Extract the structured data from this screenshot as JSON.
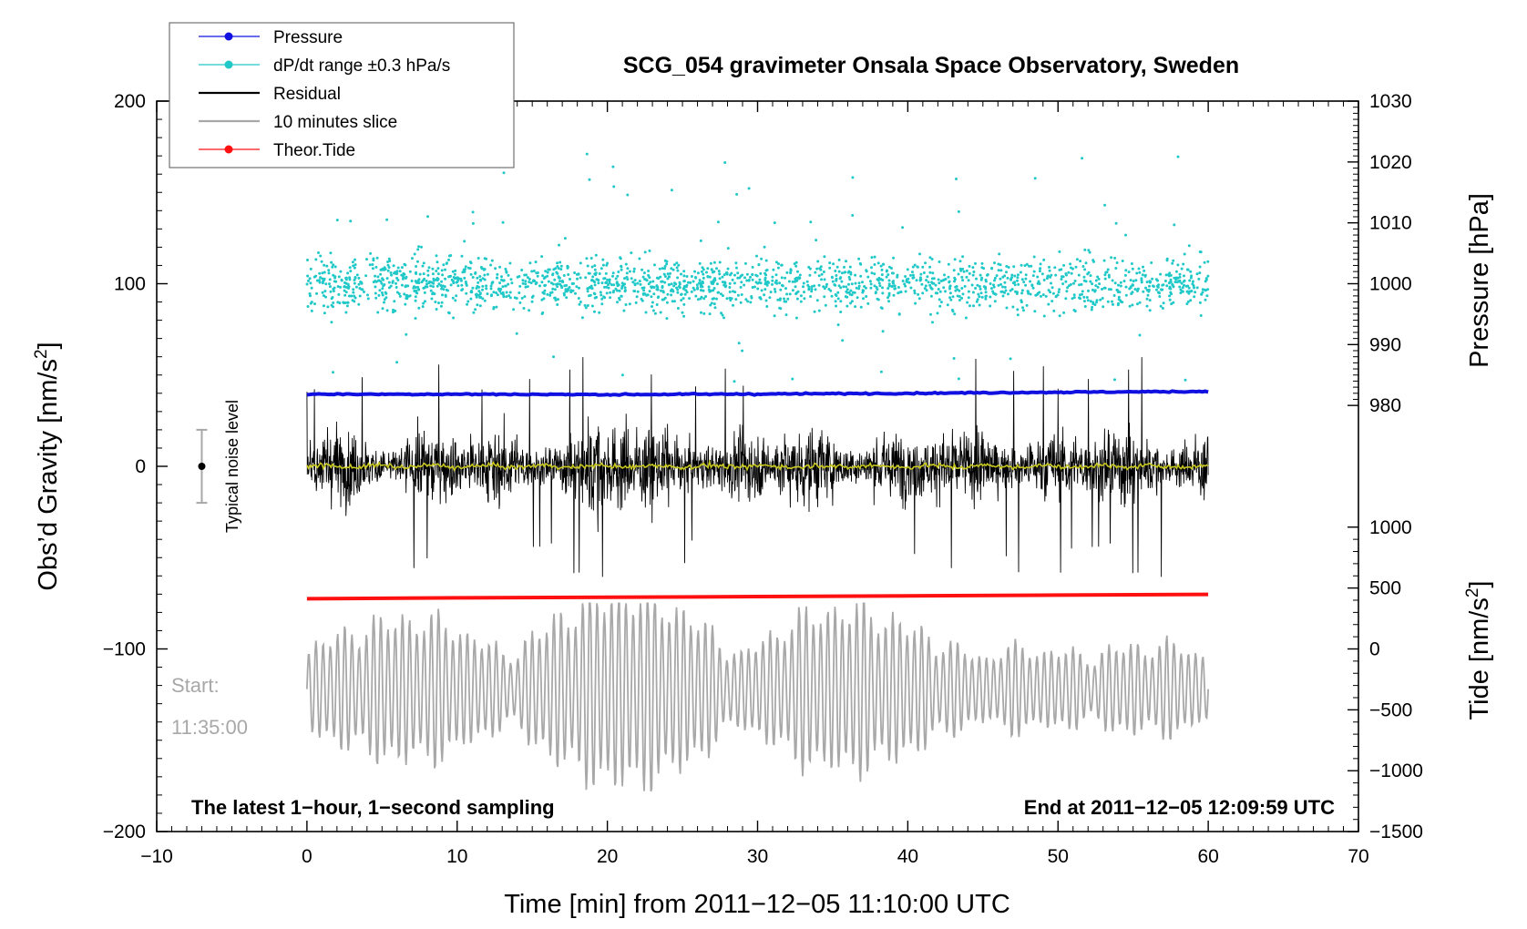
{
  "chart_data": {
    "type": "scatter",
    "title": "SCG_054 gravimeter Onsala Space Observatory, Sweden",
    "xlabel": "Time [min] from 2011−12−05 11:10:00 UTC",
    "ylabel": "Obs’d Gravity [nm/s",
    "ylabel_sup": "2",
    "ylabel_end": "]",
    "xlim": [
      -10,
      70
    ],
    "ylim": [
      -200,
      200
    ],
    "xticks": [
      -10,
      0,
      10,
      20,
      30,
      40,
      50,
      60,
      70
    ],
    "xtick_labels": [
      "−10",
      "0",
      "10",
      "20",
      "30",
      "40",
      "50",
      "60",
      "70"
    ],
    "yticks": [
      -200,
      -100,
      0,
      100,
      200
    ],
    "ytick_labels": [
      "−200",
      "−100",
      "0",
      "100",
      "200"
    ],
    "right_axis_pressure": {
      "label": "Pressure [hPa]",
      "ticks": [
        980,
        990,
        1000,
        1010,
        1020,
        1030
      ],
      "tick_labels": [
        "980",
        "990",
        "1000",
        "1010",
        "1020",
        "1030"
      ],
      "map_to_left": {
        "at_1000": 100,
        "per_hpa": 3.333
      }
    },
    "right_axis_tide": {
      "label": "Tide [nm/s",
      "label_sup": "2",
      "label_end": "]",
      "ticks": [
        -1500,
        -1000,
        -500,
        0,
        500,
        1000
      ],
      "tick_labels": [
        "−1500",
        "−1000",
        "−500",
        "0",
        "500",
        "1000"
      ],
      "map_to_left": {
        "at_0": -100,
        "per_unit": 0.0667
      }
    },
    "legend": [
      {
        "label": "Pressure",
        "color": "#1010e0",
        "marker": "dot"
      },
      {
        "label": "dP/dt range ±0.3 hPa/s",
        "color": "#20c8c8",
        "marker": "dot"
      },
      {
        "label": "Residual",
        "color": "#000000",
        "marker": "line"
      },
      {
        "label": "10 minutes slice",
        "color": "#a8a8a8",
        "marker": "line"
      },
      {
        "label": "Theor.Tide",
        "color": "#ff1010",
        "marker": "dot"
      }
    ],
    "series": [
      {
        "name": "Pressure",
        "color": "#1010e0",
        "x": [
          0,
          10,
          20,
          30,
          40,
          50,
          60
        ],
        "y": [
          39.5,
          39.5,
          39.3,
          39.6,
          40.0,
          40.6,
          41.0
        ]
      },
      {
        "name": "dP/dt range ±0.3 hPa/s",
        "color": "#20c8c8",
        "x_range": [
          0,
          60
        ],
        "center": 100,
        "spread": 12,
        "outlier_range": [
          45,
          175
        ]
      },
      {
        "name": "Residual",
        "color": "#000000",
        "x_range": [
          0,
          60
        ],
        "center": 0,
        "typical_amplitude": 22,
        "max": 65,
        "min": -68
      },
      {
        "name": "Residual 10-min smoothing",
        "color": "#c8c820",
        "x_range": [
          0,
          60
        ],
        "center": 0
      },
      {
        "name": "Theor.Tide",
        "color": "#ff1010",
        "x": [
          0,
          10,
          20,
          30,
          40,
          50,
          60
        ],
        "y": [
          -72.5,
          -72,
          -71.7,
          -71.3,
          -70.9,
          -70.5,
          -70.1
        ]
      },
      {
        "name": "10 minutes slice",
        "color": "#a8a8a8",
        "x_range": [
          0,
          60
        ],
        "center": -122,
        "amplitude_range": [
          15,
          55
        ],
        "min": -178,
        "max": -75
      }
    ],
    "noise_level": {
      "label": "Typical noise level",
      "x": -7,
      "center": 0,
      "plus_minus": 20
    },
    "annotations": {
      "bottom_left": "The latest 1−hour, 1−second sampling",
      "bottom_right": "End at 2011−12−05 12:09:59 UTC",
      "start_label": "Start:",
      "start_time": "11:35:00"
    }
  }
}
